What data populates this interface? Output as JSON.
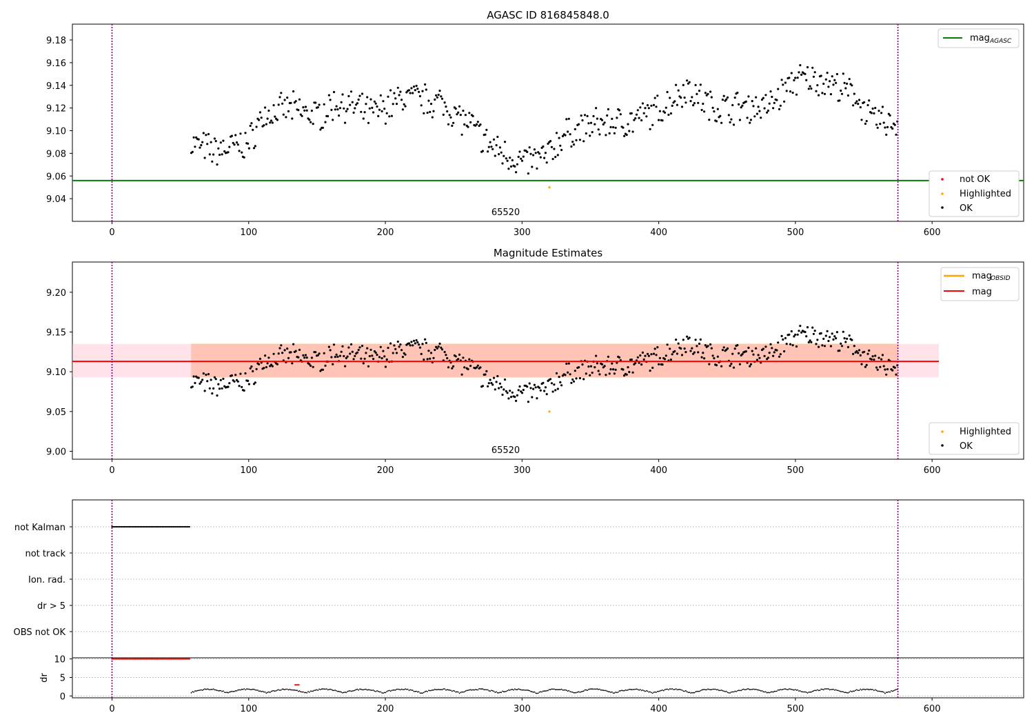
{
  "colors": {
    "ok": "#000000",
    "not_ok": "#ff0000",
    "highlighted": "#ffa500",
    "mag_agasc": "#008000",
    "mag": "#ff0000",
    "mag_obsid": "#ffa500",
    "band_outer": "#ffc0cb",
    "band_inner": "#ffa07a",
    "boundary": "#800080"
  },
  "chart_data": [
    {
      "type": "scatter",
      "title": "AGASC ID 816845848.0",
      "xlim": [
        -29,
        667
      ],
      "ylim": [
        9.02,
        9.194
      ],
      "xticks": [
        0,
        100,
        200,
        300,
        400,
        500,
        600
      ],
      "yticks": [
        9.04,
        9.06,
        9.08,
        9.1,
        9.12,
        9.14,
        9.16,
        9.18
      ],
      "ytick_labels": [
        "9.04",
        "9.06",
        "9.08",
        "9.10",
        "9.12",
        "9.14",
        "9.16",
        "9.18"
      ],
      "vlines": [
        0,
        575
      ],
      "hline": {
        "name": "mag_AGASC",
        "value": 9.056
      },
      "annotation": {
        "text": "65520",
        "x": 288
      },
      "legend_upper": {
        "main": "mag",
        "sub": "AGASC"
      },
      "legend_lower": [
        "not OK",
        "Highlighted",
        "OK"
      ],
      "grid": false,
      "series_desc": "OK points follow a varying light curve from x=58 to x=575; one highlighted point at x=320, y=9.050",
      "highlighted_point": {
        "x": 320,
        "y": 9.05
      }
    },
    {
      "type": "scatter",
      "title": "Magnitude Estimates",
      "xlim": [
        -29,
        667
      ],
      "ylim": [
        8.99,
        9.238
      ],
      "xticks": [
        0,
        100,
        200,
        300,
        400,
        500,
        600
      ],
      "yticks": [
        9.0,
        9.05,
        9.1,
        9.15,
        9.2
      ],
      "ytick_labels": [
        "9.00",
        "9.05",
        "9.10",
        "9.15",
        "9.20"
      ],
      "vlines": [
        0,
        575
      ],
      "mag": 9.113,
      "band_outer": [
        9.093,
        9.135
      ],
      "band_inner": [
        9.093,
        9.135
      ],
      "band_outer_x": [
        -29,
        605
      ],
      "band_inner_x": [
        58,
        575
      ],
      "annotation": {
        "text": "65520",
        "x": 288
      },
      "legend_upper_obsid": {
        "main": "mag",
        "sub": "OBSID"
      },
      "legend_upper_mag": "mag",
      "legend_lower": [
        "Highlighted",
        "OK"
      ],
      "grid": false
    },
    {
      "type": "scatter",
      "title": "",
      "xlim": [
        -29,
        667
      ],
      "categories": [
        "not Kalman",
        "not track",
        "Ion. rad.",
        "dr > 5",
        "OBS not OK"
      ],
      "flag_segments": [
        {
          "category": "not Kalman",
          "x": [
            0,
            57
          ]
        }
      ],
      "grid": true,
      "vlines": [
        0,
        575
      ]
    },
    {
      "type": "scatter",
      "title": "",
      "ylabel": "dr",
      "xlim": [
        -29,
        667
      ],
      "ylim": [
        -0.5,
        10.3
      ],
      "xticks": [
        0,
        100,
        200,
        300,
        400,
        500,
        600
      ],
      "yticks": [
        0,
        5,
        10
      ],
      "ytick_labels": [
        "0",
        "5",
        "10"
      ],
      "xtick_labels": [
        "0",
        "100",
        "200",
        "300",
        "400",
        "500",
        "600"
      ],
      "red_segment": {
        "x": [
          0,
          57
        ],
        "y": 10
      },
      "red_blip": {
        "x": [
          134,
          137
        ],
        "y": 3
      },
      "grid": true,
      "vlines": [
        0,
        575
      ]
    }
  ]
}
